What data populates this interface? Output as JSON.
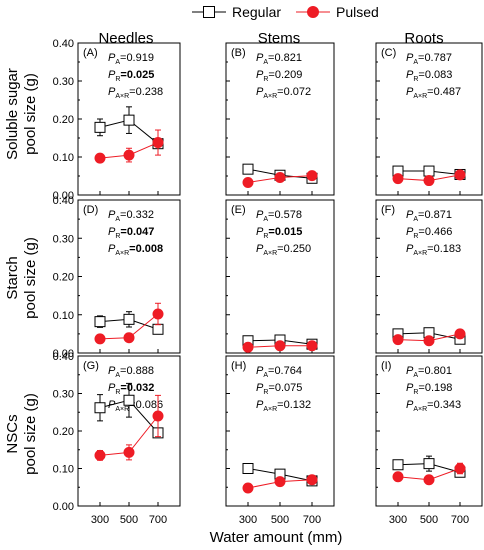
{
  "legend": {
    "regular_label": "Regular",
    "pulsed_label": "Pulsed"
  },
  "columns": [
    "Needles",
    "Stems",
    "Roots"
  ],
  "row_labels": [
    [
      "Soluble sugar",
      "pool size (g)"
    ],
    [
      "Starch",
      "pool size (g)"
    ],
    [
      "NSCs",
      "pool size (g)"
    ]
  ],
  "xlabel": "Water amount (mm)",
  "colors": {
    "regular": "#000000",
    "pulsed": "#ee1c25"
  },
  "chart_data": {
    "type": "line",
    "x": [
      300,
      500,
      700
    ],
    "xticks": [
      "300",
      "500",
      "700"
    ],
    "ylim": [
      0,
      0.4
    ],
    "yticks": [
      "0.00",
      "0.10",
      "0.20",
      "0.30",
      "0.40"
    ],
    "series_names": [
      "Regular",
      "Pulsed"
    ],
    "panels": [
      {
        "id": "(A)",
        "row": 0,
        "col": 0,
        "stats": [
          {
            "sub": "A",
            "value": "=0.919",
            "bold": false
          },
          {
            "sub": "R",
            "value": "=0.025",
            "bold": true
          },
          {
            "sub": "A×R",
            "value": "=0.238",
            "bold": false
          }
        ],
        "regular": [
          0.178,
          0.197,
          0.135
        ],
        "regular_err": [
          0.022,
          0.035,
          0.005
        ],
        "pulsed": [
          0.097,
          0.105,
          0.138
        ],
        "pulsed_err": [
          0.01,
          0.018,
          0.033
        ]
      },
      {
        "id": "(B)",
        "row": 0,
        "col": 1,
        "stats": [
          {
            "sub": "A",
            "value": "=0.821",
            "bold": false
          },
          {
            "sub": "R",
            "value": "=0.209",
            "bold": false
          },
          {
            "sub": "A×R",
            "value": "=0.072",
            "bold": false
          }
        ],
        "regular": [
          0.068,
          0.052,
          0.044
        ],
        "regular_err": [
          0.012,
          0.006,
          0.006
        ],
        "pulsed": [
          0.033,
          0.046,
          0.051
        ],
        "pulsed_err": [
          0.004,
          0.006,
          0.006
        ]
      },
      {
        "id": "(C)",
        "row": 0,
        "col": 2,
        "stats": [
          {
            "sub": "A",
            "value": "=0.787",
            "bold": false
          },
          {
            "sub": "R",
            "value": "=0.083",
            "bold": false
          },
          {
            "sub": "A×R",
            "value": "=0.487",
            "bold": false
          }
        ],
        "regular": [
          0.063,
          0.063,
          0.054
        ],
        "regular_err": [
          0.006,
          0.012,
          0.006
        ],
        "pulsed": [
          0.043,
          0.038,
          0.053
        ],
        "pulsed_err": [
          0.006,
          0.006,
          0.006
        ]
      },
      {
        "id": "(D)",
        "row": 1,
        "col": 0,
        "stats": [
          {
            "sub": "A",
            "value": "=0.332",
            "bold": false
          },
          {
            "sub": "R",
            "value": "=0.047",
            "bold": true
          },
          {
            "sub": "A×R",
            "value": "=0.008",
            "bold": true
          }
        ],
        "regular": [
          0.082,
          0.088,
          0.062
        ],
        "regular_err": [
          0.015,
          0.02,
          0.004
        ],
        "pulsed": [
          0.037,
          0.04,
          0.102
        ],
        "pulsed_err": [
          0.003,
          0.007,
          0.028
        ]
      },
      {
        "id": "(E)",
        "row": 1,
        "col": 1,
        "stats": [
          {
            "sub": "A",
            "value": "=0.578",
            "bold": false
          },
          {
            "sub": "R",
            "value": "=0.015",
            "bold": true
          },
          {
            "sub": "A×R",
            "value": "=0.250",
            "bold": false
          }
        ],
        "regular": [
          0.032,
          0.034,
          0.023
        ],
        "regular_err": [
          0.005,
          0.005,
          0.003
        ],
        "pulsed": [
          0.015,
          0.019,
          0.019
        ],
        "pulsed_err": [
          0.003,
          0.002,
          0.002
        ]
      },
      {
        "id": "(F)",
        "row": 1,
        "col": 2,
        "stats": [
          {
            "sub": "A",
            "value": "=0.871",
            "bold": false
          },
          {
            "sub": "R",
            "value": "=0.466",
            "bold": false
          },
          {
            "sub": "A×R",
            "value": "=0.183",
            "bold": false
          }
        ],
        "regular": [
          0.05,
          0.053,
          0.036
        ],
        "regular_err": [
          0.008,
          0.012,
          0.005
        ],
        "pulsed": [
          0.035,
          0.032,
          0.05
        ],
        "pulsed_err": [
          0.004,
          0.008,
          0.01
        ]
      },
      {
        "id": "(G)",
        "row": 2,
        "col": 0,
        "stats": [
          {
            "sub": "A",
            "value": "=0.888",
            "bold": false
          },
          {
            "sub": "R",
            "value": "=0.032",
            "bold": true
          },
          {
            "sub": "A×R",
            "value": "=0.086",
            "bold": false
          }
        ],
        "regular": [
          0.262,
          0.282,
          0.195
        ],
        "regular_err": [
          0.035,
          0.045,
          0.01
        ],
        "pulsed": [
          0.135,
          0.143,
          0.24
        ],
        "pulsed_err": [
          0.013,
          0.02,
          0.055
        ]
      },
      {
        "id": "(H)",
        "row": 2,
        "col": 1,
        "stats": [
          {
            "sub": "A",
            "value": "=0.764",
            "bold": false
          },
          {
            "sub": "R",
            "value": "=0.075",
            "bold": false
          },
          {
            "sub": "A×R",
            "value": "=0.132",
            "bold": false
          }
        ],
        "regular": [
          0.1,
          0.085,
          0.067
        ],
        "regular_err": [
          0.012,
          0.01,
          0.008
        ],
        "pulsed": [
          0.048,
          0.065,
          0.07
        ],
        "pulsed_err": [
          0.006,
          0.008,
          0.008
        ]
      },
      {
        "id": "(I)",
        "row": 2,
        "col": 2,
        "stats": [
          {
            "sub": "A",
            "value": "=0.801",
            "bold": false
          },
          {
            "sub": "R",
            "value": "=0.198",
            "bold": false
          },
          {
            "sub": "A×R",
            "value": "=0.343",
            "bold": false
          }
        ],
        "regular": [
          0.11,
          0.113,
          0.09
        ],
        "regular_err": [
          0.012,
          0.02,
          0.01
        ],
        "pulsed": [
          0.078,
          0.07,
          0.1
        ],
        "pulsed_err": [
          0.01,
          0.01,
          0.014
        ]
      }
    ]
  }
}
